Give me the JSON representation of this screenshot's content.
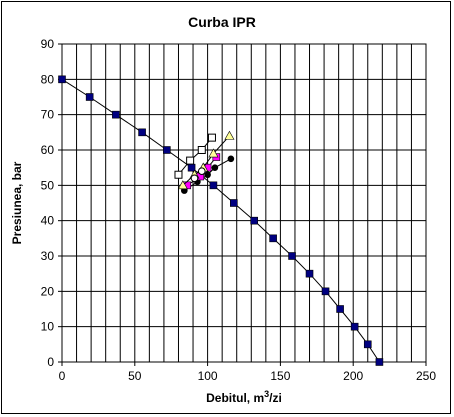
{
  "chart_data": {
    "type": "scatter",
    "title": "Curba IPR",
    "xlabel_main": "Debitul, m",
    "xlabel_sup": "3",
    "xlabel_end": "/zi",
    "ylabel": "Presiunea, bar",
    "xlim": [
      0,
      250
    ],
    "ylim": [
      0,
      90
    ],
    "xticks": [
      "0",
      "50",
      "100",
      "150",
      "200",
      "250"
    ],
    "yticks": [
      "0",
      "10",
      "20",
      "30",
      "40",
      "50",
      "60",
      "70",
      "80",
      "90"
    ],
    "grid": true,
    "legend": "none",
    "series": [
      {
        "color": "#000080",
        "marker": "square-filled",
        "line": true,
        "points": [
          [
            0,
            80
          ],
          [
            19,
            75
          ],
          [
            37,
            70
          ],
          [
            55,
            65
          ],
          [
            72,
            60
          ],
          [
            89,
            55
          ],
          [
            104,
            50
          ],
          [
            118,
            45
          ],
          [
            132,
            40
          ],
          [
            145,
            35
          ],
          [
            158,
            30
          ],
          [
            170,
            25
          ],
          [
            181,
            20
          ],
          [
            191,
            15
          ],
          [
            201,
            10
          ],
          [
            210,
            5
          ],
          [
            218,
            0
          ]
        ]
      },
      {
        "color": "#000000",
        "marker": "circle-filled",
        "line": true,
        "points": [
          [
            84,
            48.5
          ],
          [
            93,
            51
          ],
          [
            100,
            53
          ],
          [
            105,
            55
          ],
          [
            116,
            57.5
          ]
        ]
      },
      {
        "color": "#FF00FF",
        "marker": "square-filled",
        "line": true,
        "points": [
          [
            86,
            50
          ],
          [
            95,
            52.5
          ],
          [
            100,
            55
          ],
          [
            106,
            58
          ]
        ]
      },
      {
        "color": "#FFFF99",
        "marker": "triangle-filled",
        "line": true,
        "points": [
          [
            83,
            50
          ],
          [
            91,
            53
          ],
          [
            97,
            55
          ],
          [
            104,
            59
          ],
          [
            115,
            64
          ]
        ]
      },
      {
        "color": "#000000",
        "marker": "square-open",
        "line": true,
        "points": [
          [
            80,
            53
          ],
          [
            88,
            57
          ],
          [
            96,
            60
          ],
          [
            103,
            63.5
          ]
        ]
      },
      {
        "color": "#000000",
        "marker": "circle-open",
        "line": false,
        "points": [
          [
            91,
            52
          ],
          [
            96,
            54
          ]
        ]
      }
    ]
  }
}
